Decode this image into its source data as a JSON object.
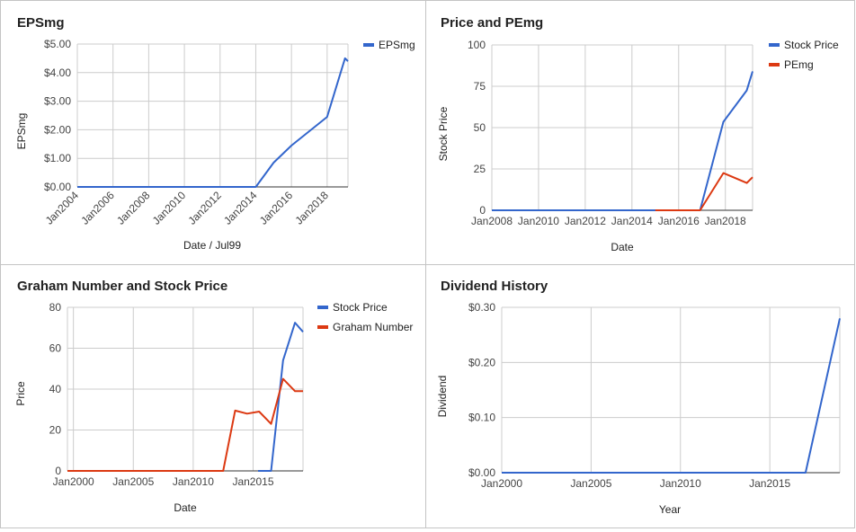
{
  "chart_data": [
    {
      "type": "line",
      "title": "EPSmg",
      "xlabel": "Date / Jul99",
      "ylabel": "EPSmg",
      "x_type": "date",
      "x_ticks": [
        "Jan2004",
        "Jan2006",
        "Jan2008",
        "Jan2010",
        "Jan2012",
        "Jan2014",
        "Jan2016",
        "Jan2018"
      ],
      "y_ticks": [
        "$0.00",
        "$1.00",
        "$2.00",
        "$3.00",
        "$4.00",
        "$5.00"
      ],
      "ylim": [
        0,
        5
      ],
      "xlim": [
        "2004-01",
        "2019-03"
      ],
      "grid": true,
      "legend": "right",
      "series": [
        {
          "name": "EPSmg",
          "color": "#3366cc",
          "x": [
            "2004-01",
            "2014-01",
            "2015-01",
            "2016-01",
            "2018-01",
            "2019-01",
            "2019-03"
          ],
          "y": [
            0,
            0,
            0.85,
            1.45,
            2.45,
            4.5,
            4.4
          ]
        }
      ]
    },
    {
      "type": "line",
      "title": "Price and PEmg",
      "xlabel": "Date",
      "ylabel": "Stock Price",
      "x_type": "date",
      "x_ticks": [
        "Jan2008",
        "Jan2010",
        "Jan2012",
        "Jan2014",
        "Jan2016",
        "Jan2018"
      ],
      "y_ticks": [
        "0",
        "25",
        "50",
        "75",
        "100"
      ],
      "ylim": [
        0,
        100
      ],
      "xlim": [
        "2008-01",
        "2019-03"
      ],
      "grid": true,
      "legend": "right",
      "series": [
        {
          "name": "Stock Price",
          "color": "#3366cc",
          "x": [
            "2008-01",
            "2016-12",
            "2017-12",
            "2018-12",
            "2019-03"
          ],
          "y": [
            0,
            0,
            53.5,
            72.5,
            84
          ]
        },
        {
          "name": "PEmg",
          "color": "#dc3912",
          "x": [
            "2015-01",
            "2016-12",
            "2017-12",
            "2018-12",
            "2019-03"
          ],
          "y": [
            0,
            0,
            22.5,
            16.5,
            20
          ]
        }
      ]
    },
    {
      "type": "line",
      "title": "Graham Number and Stock Price",
      "xlabel": "Date",
      "ylabel": "Price",
      "x_type": "date",
      "x_ticks": [
        "Jan2000",
        "Jan2005",
        "Jan2010",
        "Jan2015"
      ],
      "y_ticks": [
        "0",
        "20",
        "40",
        "60",
        "80"
      ],
      "ylim": [
        0,
        80
      ],
      "xlim": [
        "1999-07",
        "2019-03"
      ],
      "grid": true,
      "legend": "right",
      "series": [
        {
          "name": "Stock Price",
          "color": "#3366cc",
          "x": [
            "2015-06",
            "2016-07",
            "2017-07",
            "2018-07",
            "2019-03"
          ],
          "y": [
            0,
            0,
            54,
            72.5,
            68
          ]
        },
        {
          "name": "Graham Number",
          "color": "#dc3912",
          "x": [
            "1999-07",
            "2012-07",
            "2013-07",
            "2014-07",
            "2015-07",
            "2016-07",
            "2017-07",
            "2018-07",
            "2019-03"
          ],
          "y": [
            0,
            0,
            29.5,
            28,
            29,
            23,
            45,
            39,
            39
          ]
        }
      ]
    },
    {
      "type": "line",
      "title": "Dividend History",
      "xlabel": "Year",
      "ylabel": "Dividend",
      "x_type": "date",
      "x_ticks": [
        "Jan2000",
        "Jan2005",
        "Jan2010",
        "Jan2015"
      ],
      "y_ticks": [
        "$0.00",
        "$0.10",
        "$0.20",
        "$0.30"
      ],
      "ylim": [
        0,
        0.3
      ],
      "xlim": [
        "2000-01",
        "2018-12"
      ],
      "grid": true,
      "legend": "none",
      "series": [
        {
          "name": "",
          "color": "#3366cc",
          "x": [
            "2000-01",
            "2017-01",
            "2018-12"
          ],
          "y": [
            0,
            0,
            0.28
          ]
        }
      ]
    }
  ]
}
